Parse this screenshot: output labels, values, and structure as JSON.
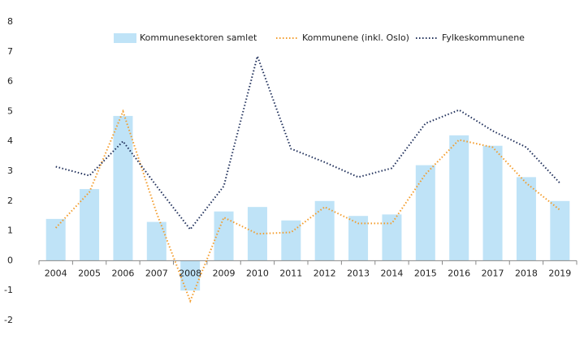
{
  "chart_data": {
    "type": "bar",
    "categories": [
      "2004",
      "2005",
      "2006",
      "2007",
      "2008",
      "2009",
      "2010",
      "2011",
      "2012",
      "2013",
      "2014",
      "2015",
      "2016",
      "2017",
      "2018",
      "2019"
    ],
    "series": [
      {
        "name": "Kommunesektoren samlet",
        "type": "bar",
        "color": "#bfe3f7",
        "values": [
          1.4,
          2.4,
          4.85,
          1.3,
          -1.0,
          1.65,
          1.8,
          1.35,
          2.0,
          1.5,
          1.55,
          3.2,
          4.2,
          3.85,
          2.8,
          2.0
        ]
      },
      {
        "name": "Kommunene (inkl. Oslo)",
        "type": "line",
        "color": "#f39c2b",
        "values": [
          1.1,
          2.3,
          5.0,
          1.6,
          -1.35,
          1.45,
          0.9,
          0.95,
          1.8,
          1.25,
          1.25,
          2.9,
          4.05,
          3.8,
          2.6,
          1.7
        ]
      },
      {
        "name": "Fylkeskommunene",
        "type": "line",
        "color": "#1f2f5a",
        "values": [
          3.15,
          2.85,
          4.0,
          2.5,
          1.05,
          2.5,
          6.85,
          3.75,
          3.3,
          2.8,
          3.1,
          4.6,
          5.05,
          4.35,
          3.8,
          2.6
        ]
      }
    ],
    "ylim": [
      -2,
      8
    ],
    "yticks": [
      -2,
      -1,
      0,
      1,
      2,
      3,
      4,
      5,
      6,
      7,
      8
    ],
    "grid": false,
    "legend": "top"
  }
}
